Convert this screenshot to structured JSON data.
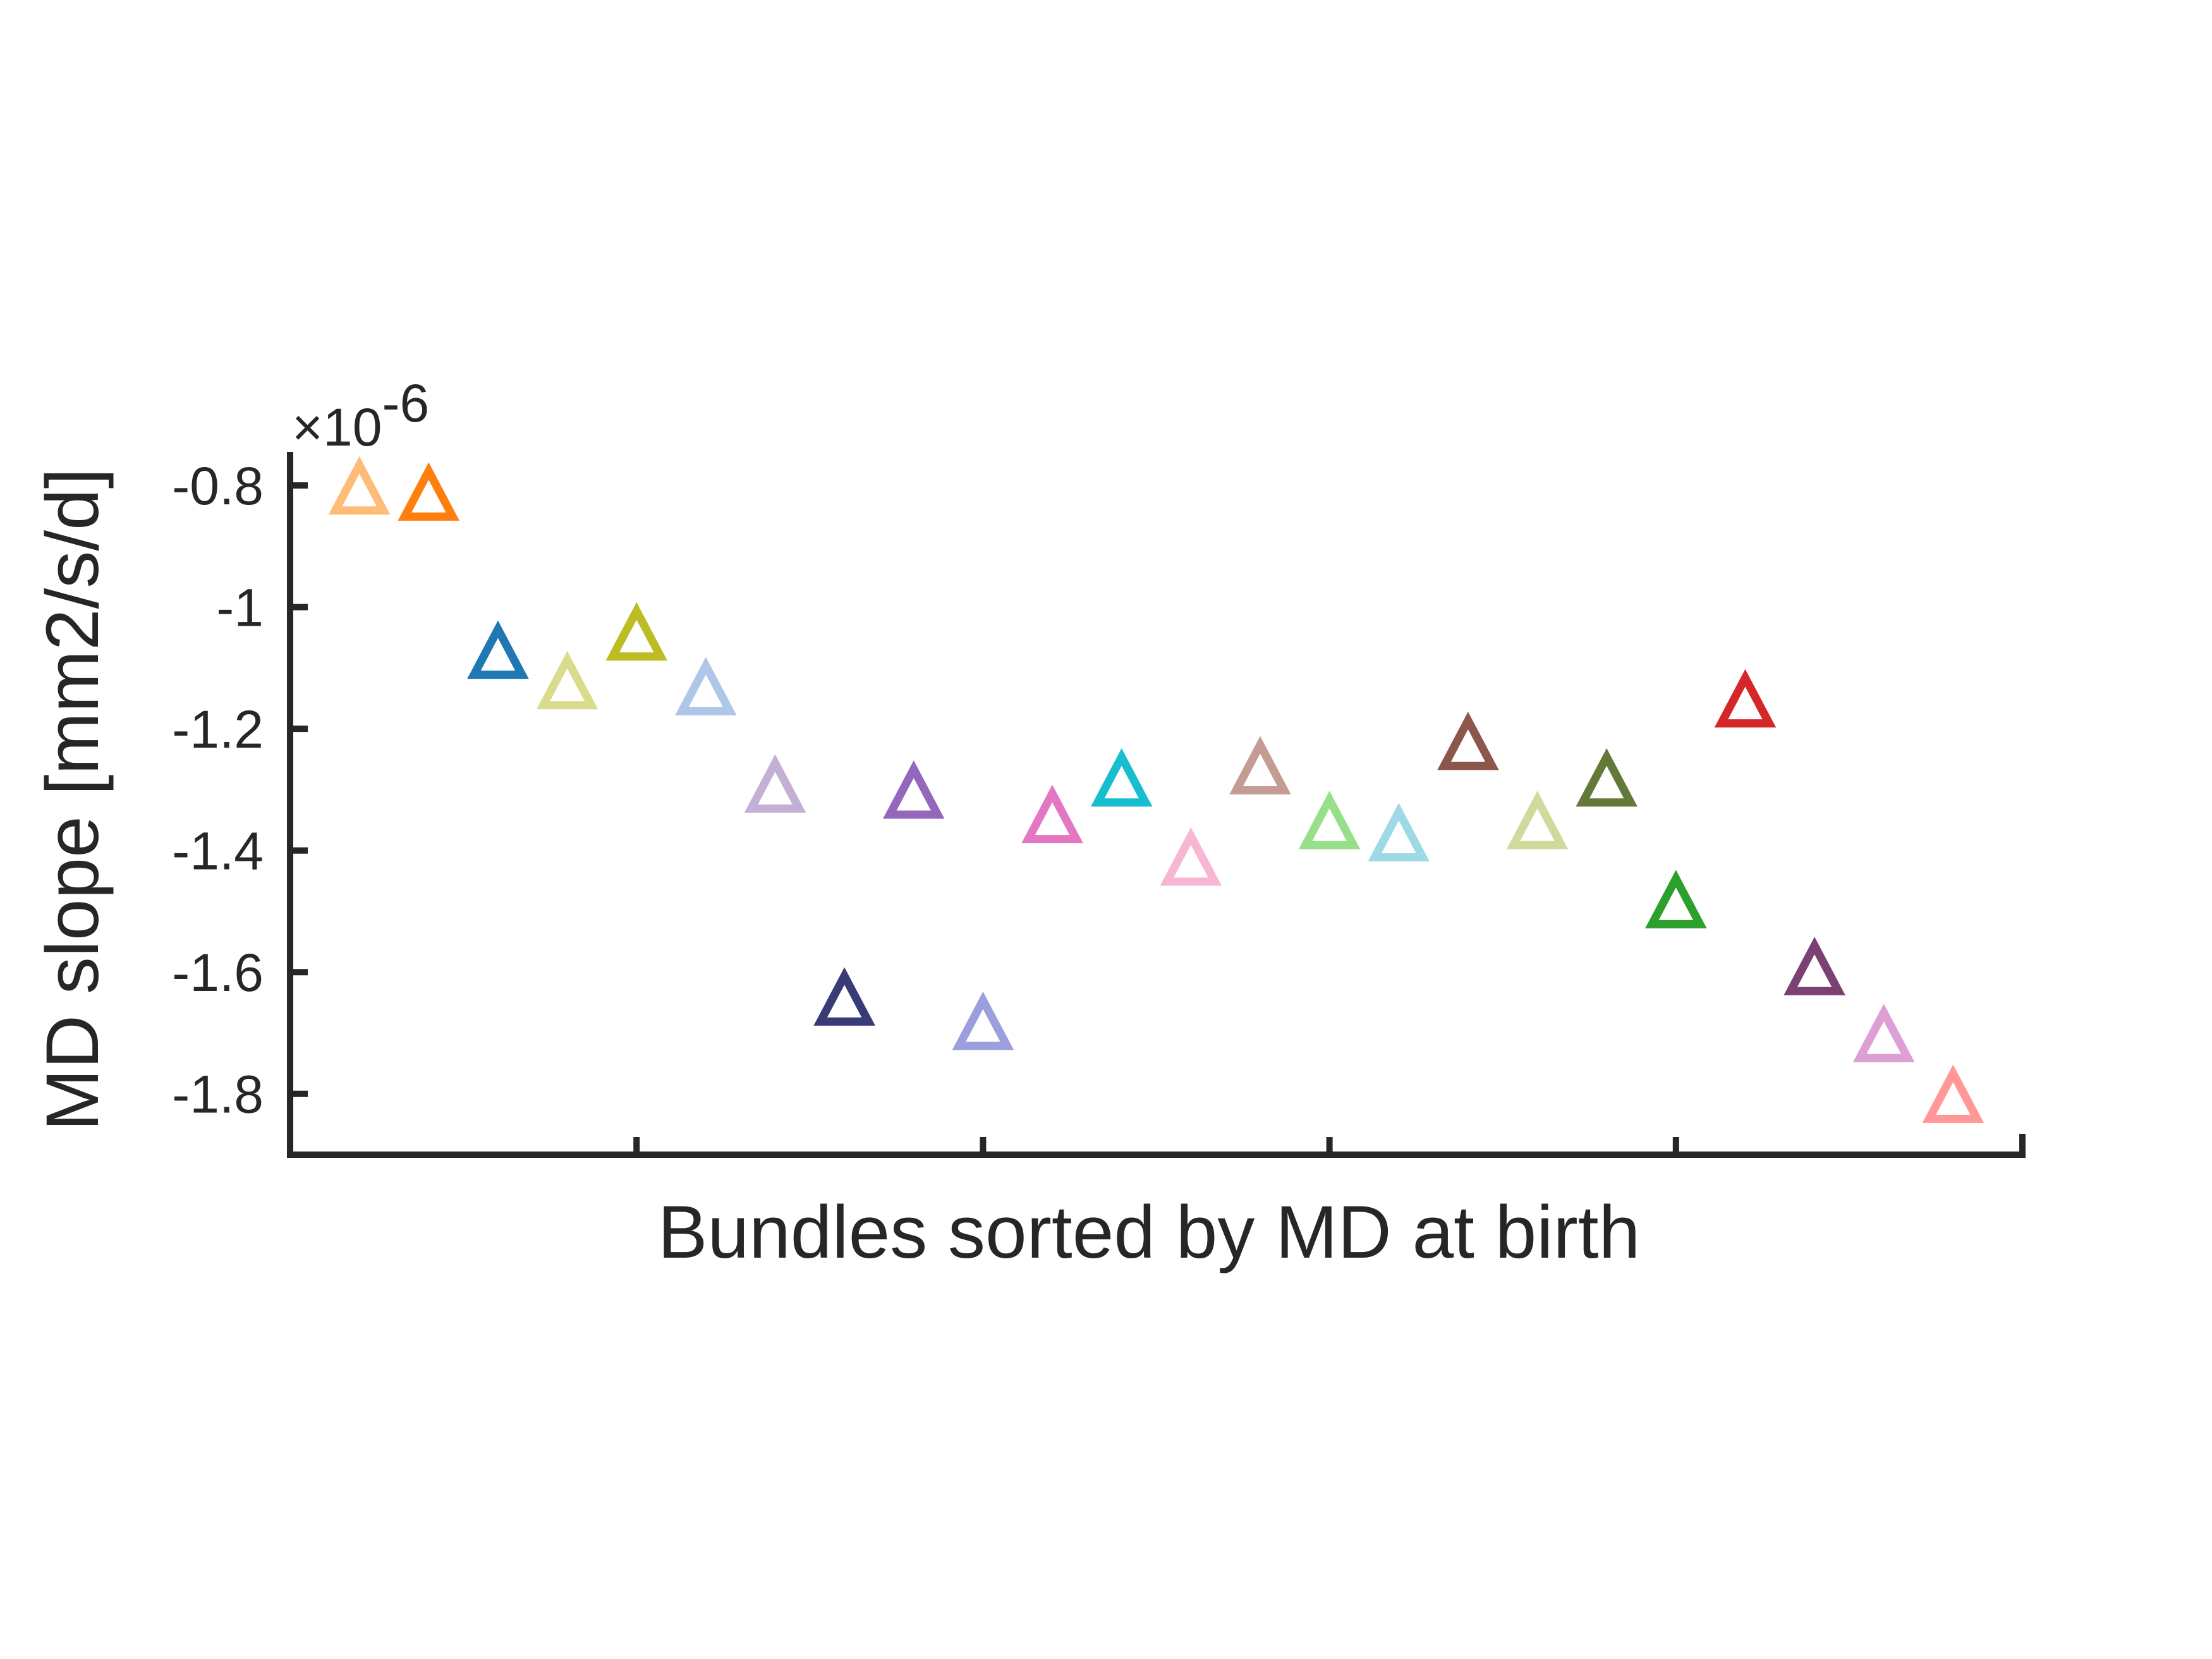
{
  "chart_data": {
    "type": "scatter",
    "marker": "triangle-up-open",
    "xlabel": "Bundles sorted by MD at birth",
    "ylabel": "MD slope [mm2/s/d]",
    "y_exponent_label": "×10",
    "y_exponent_power": "-6",
    "y_scale_factor": 1e-06,
    "ylim": [
      -1.9,
      -0.75
    ],
    "xlim": [
      0,
      25
    ],
    "yticks": [
      {
        "value": -0.8,
        "label": "-0.8"
      },
      {
        "value": -1.0,
        "label": "-1"
      },
      {
        "value": -1.2,
        "label": "-1.2"
      },
      {
        "value": -1.4,
        "label": "-1.4"
      },
      {
        "value": -1.6,
        "label": "-1.6"
      },
      {
        "value": -1.8,
        "label": "-1.8"
      }
    ],
    "xticks": [
      5,
      10,
      15,
      20
    ],
    "grid": false,
    "points": [
      {
        "x": 1,
        "y": -0.81,
        "color": "#ffbb78"
      },
      {
        "x": 2,
        "y": -0.82,
        "color": "#ff7f0e"
      },
      {
        "x": 3,
        "y": -1.08,
        "color": "#1f77b4"
      },
      {
        "x": 4,
        "y": -1.13,
        "color": "#dbdb8d"
      },
      {
        "x": 5,
        "y": -1.05,
        "color": "#bcbd22"
      },
      {
        "x": 6,
        "y": -1.14,
        "color": "#aec7e8"
      },
      {
        "x": 7,
        "y": -1.3,
        "color": "#c5b0d5"
      },
      {
        "x": 8,
        "y": -1.65,
        "color": "#393b79"
      },
      {
        "x": 9,
        "y": -1.31,
        "color": "#9467bd"
      },
      {
        "x": 10,
        "y": -1.69,
        "color": "#9c9ede"
      },
      {
        "x": 11,
        "y": -1.35,
        "color": "#e377c2"
      },
      {
        "x": 12,
        "y": -1.29,
        "color": "#17becf"
      },
      {
        "x": 13,
        "y": -1.42,
        "color": "#f7b6d2"
      },
      {
        "x": 14,
        "y": -1.27,
        "color": "#c49c94"
      },
      {
        "x": 15,
        "y": -1.36,
        "color": "#98df8a"
      },
      {
        "x": 16,
        "y": -1.38,
        "color": "#9edae5"
      },
      {
        "x": 17,
        "y": -1.23,
        "color": "#8c564b"
      },
      {
        "x": 18,
        "y": -1.36,
        "color": "#cedb9c"
      },
      {
        "x": 19,
        "y": -1.29,
        "color": "#637939"
      },
      {
        "x": 20,
        "y": -1.49,
        "color": "#2ca02c"
      },
      {
        "x": 21,
        "y": -1.16,
        "color": "#d62728"
      },
      {
        "x": 22,
        "y": -1.6,
        "color": "#7b4173"
      },
      {
        "x": 23,
        "y": -1.71,
        "color": "#de9ed6"
      },
      {
        "x": 24,
        "y": -1.81,
        "color": "#ff9896"
      }
    ]
  }
}
